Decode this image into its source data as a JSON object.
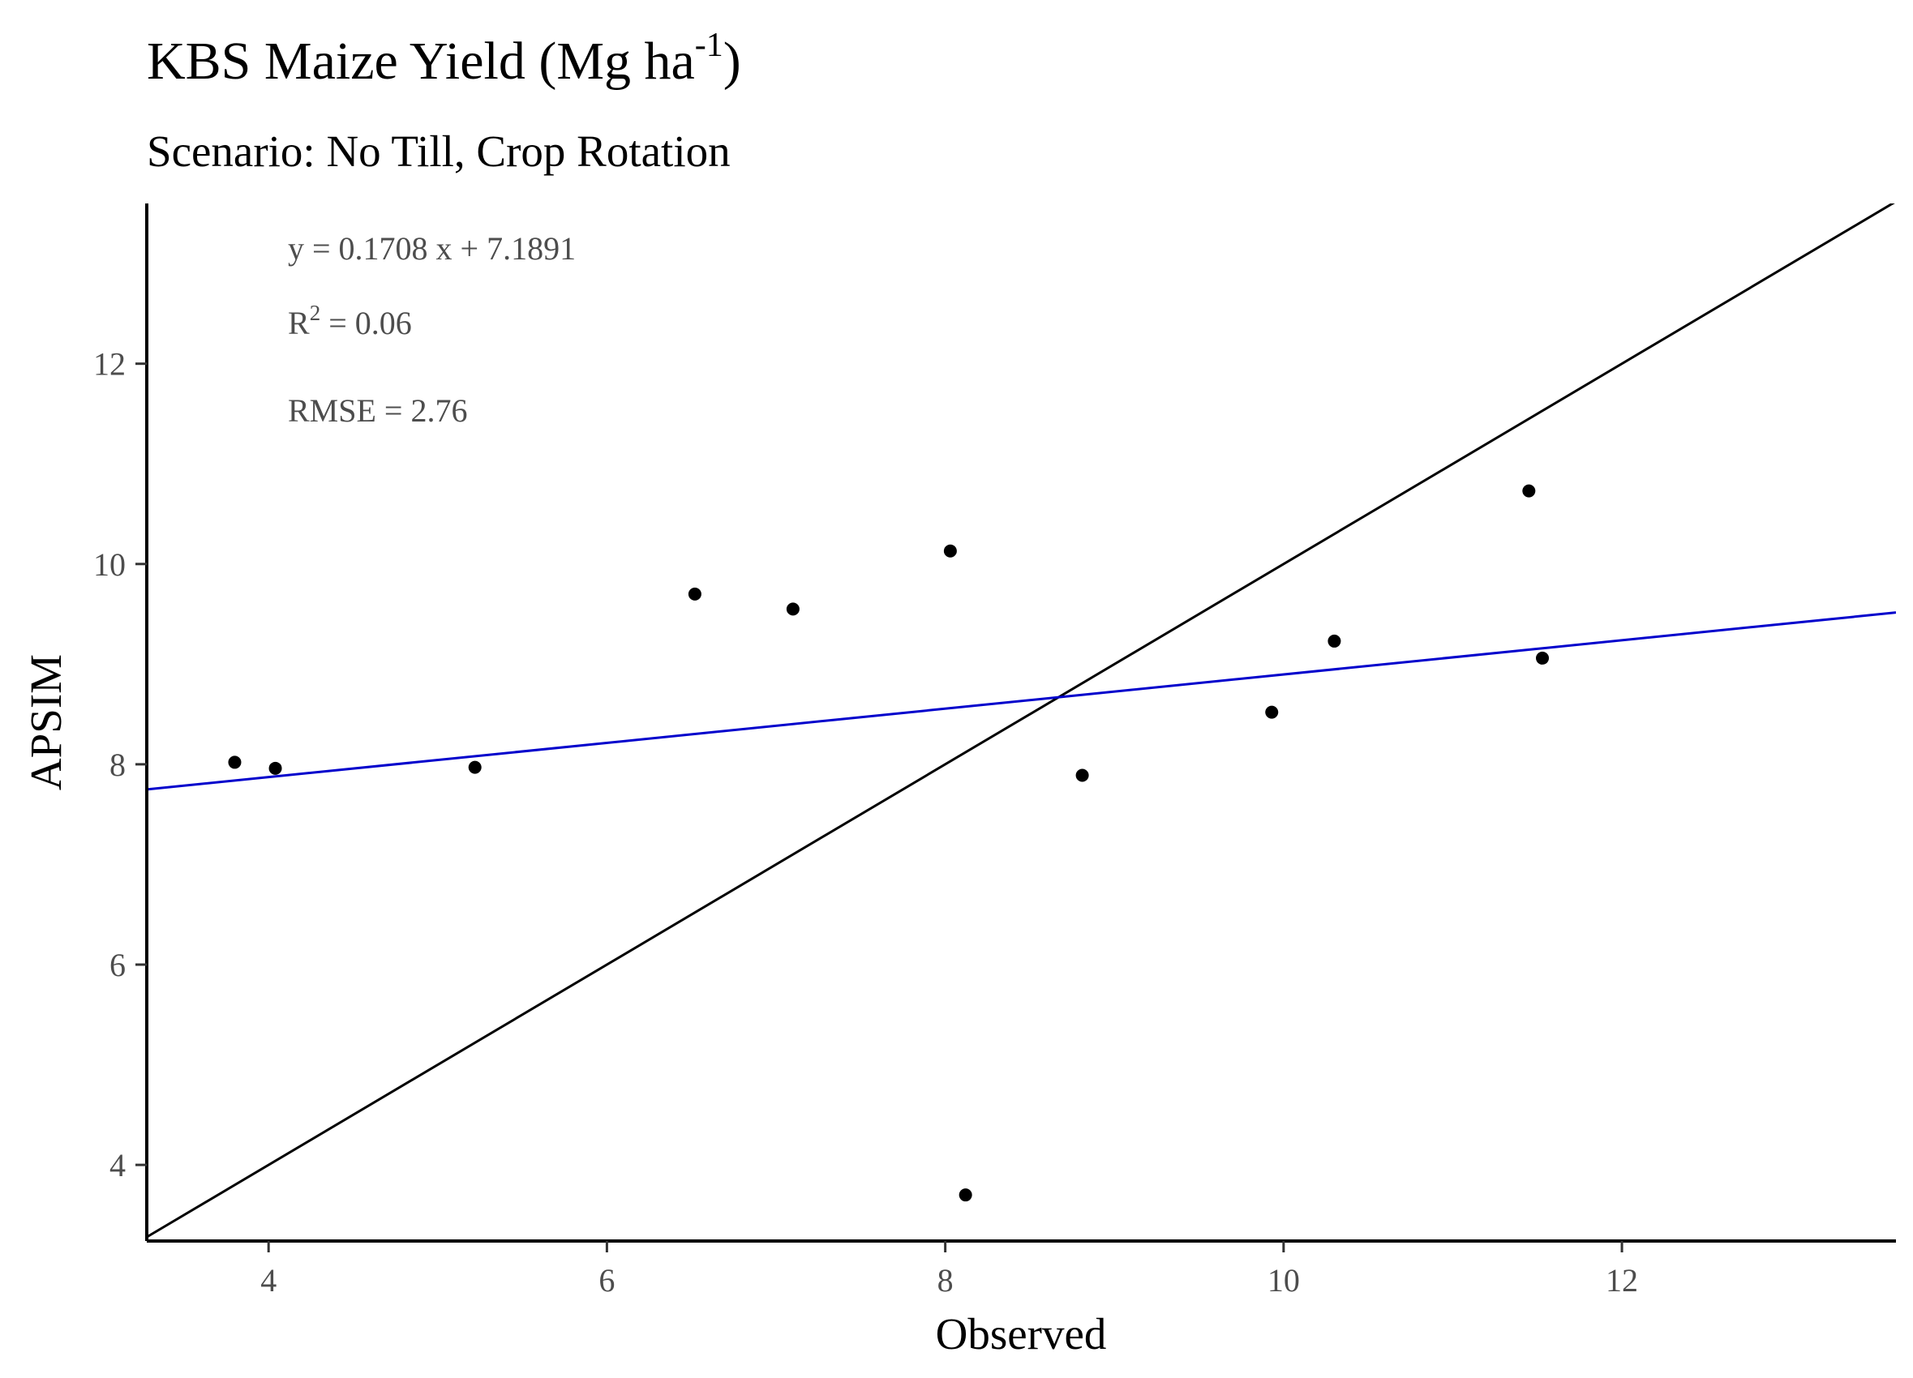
{
  "chart_data": {
    "type": "scatter",
    "title": "KBS Maize Yield (Mg ha",
    "title_sup": "-1",
    "title_close": ")",
    "subtitle": "Scenario: No Till, Crop Rotation",
    "xlabel": "Observed",
    "ylabel": "APSIM",
    "xlim": [
      3.28,
      13.62
    ],
    "ylim": [
      3.24,
      13.6
    ],
    "xticks": [
      4,
      6,
      8,
      10,
      12
    ],
    "yticks": [
      4,
      6,
      8,
      10,
      12
    ],
    "grid": false,
    "points": [
      {
        "x": 3.8,
        "y": 8.02
      },
      {
        "x": 4.04,
        "y": 7.96
      },
      {
        "x": 5.22,
        "y": 7.97
      },
      {
        "x": 6.52,
        "y": 9.7
      },
      {
        "x": 7.1,
        "y": 9.55
      },
      {
        "x": 8.03,
        "y": 10.13
      },
      {
        "x": 8.12,
        "y": 3.7
      },
      {
        "x": 8.81,
        "y": 7.89
      },
      {
        "x": 9.93,
        "y": 8.52
      },
      {
        "x": 10.3,
        "y": 9.23
      },
      {
        "x": 11.45,
        "y": 10.73
      },
      {
        "x": 11.53,
        "y": 9.06
      }
    ],
    "reference_line": {
      "slope": 1,
      "intercept": 0,
      "color": "#000000"
    },
    "fit_line": {
      "slope": 0.1708,
      "intercept": 7.1891,
      "color": "#0000cc"
    },
    "annotations": {
      "equation": "y = 0.1708 x +  7.1891",
      "r2_prefix": "R",
      "r2_sup": "2",
      "r2_value": " = 0.06",
      "rmse": "RMSE = 2.76"
    }
  }
}
